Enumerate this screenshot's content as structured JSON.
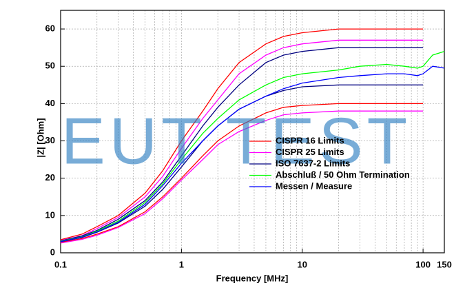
{
  "chart_data": {
    "type": "line",
    "watermark": "EUT TEST",
    "xlabel": "Frequency [MHz]",
    "ylabel": "|Z| [Ohm]",
    "xscale": "log",
    "xlim": [
      0.1,
      150
    ],
    "xticks": [
      0.1,
      1,
      10,
      100,
      150
    ],
    "ylim": [
      0,
      65
    ],
    "yticks": [
      0,
      10,
      20,
      30,
      40,
      50,
      60
    ],
    "grid": true,
    "series": [
      {
        "name": "CISPR 16 Limits",
        "color": "#ff0000",
        "x": [
          0.1,
          0.15,
          0.2,
          0.3,
          0.5,
          0.7,
          1,
          1.5,
          2,
          3,
          5,
          7,
          10,
          20,
          30,
          50,
          100
        ],
        "values": [
          3.5,
          5,
          7,
          10,
          16,
          22,
          30,
          38,
          44,
          51,
          56,
          58,
          59,
          60,
          60,
          60,
          60
        ],
        "lower": [
          2.8,
          3.8,
          5,
          7,
          11,
          15,
          20,
          26,
          30,
          34,
          37.5,
          39,
          39.5,
          40,
          40,
          40,
          40
        ]
      },
      {
        "name": "CISPR 25 Limits",
        "color": "#ff00ff",
        "x": [
          0.1,
          0.15,
          0.2,
          0.3,
          0.5,
          0.7,
          1,
          1.5,
          2,
          3,
          5,
          7,
          10,
          20,
          30,
          50,
          100
        ],
        "values": [
          3.3,
          4.6,
          6.5,
          9.5,
          15,
          20.5,
          28,
          36,
          41,
          48,
          53,
          55,
          56,
          57,
          57,
          57,
          57
        ],
        "lower": [
          2.6,
          3.6,
          4.7,
          6.8,
          10.5,
          14.5,
          19.5,
          25,
          29,
          32.5,
          35.5,
          37,
          37.5,
          38,
          38,
          38,
          38
        ]
      },
      {
        "name": "ISO 7637-2 Limits",
        "color": "#000080",
        "x": [
          0.1,
          0.15,
          0.2,
          0.3,
          0.5,
          0.7,
          1,
          1.5,
          2,
          3,
          5,
          7,
          10,
          20,
          30,
          50,
          100
        ],
        "values": [
          3.2,
          4.5,
          6,
          9,
          14,
          19,
          26,
          34,
          39,
          45,
          51,
          53,
          54,
          55,
          55,
          55,
          55
        ],
        "lower": [
          3,
          4.1,
          5.5,
          8,
          12.5,
          17,
          23,
          30,
          34,
          38.5,
          42,
          43.5,
          44.5,
          45,
          45,
          45,
          45
        ]
      },
      {
        "name": "Abschluß / 50 Ohm Termination",
        "color": "#00ff00",
        "x": [
          0.1,
          0.15,
          0.2,
          0.3,
          0.5,
          0.7,
          1,
          1.5,
          2,
          3,
          5,
          7,
          10,
          20,
          30,
          50,
          70,
          90,
          100,
          120,
          150
        ],
        "values": [
          3.1,
          4.3,
          5.8,
          8.5,
          13.5,
          18.5,
          25,
          32,
          36,
          41,
          45,
          47,
          48,
          49,
          50,
          50.5,
          50,
          49.5,
          50,
          53,
          54
        ]
      },
      {
        "name": "Messen / Measure",
        "color": "#0000ff",
        "x": [
          0.1,
          0.15,
          0.2,
          0.3,
          0.5,
          0.7,
          1,
          1.5,
          2,
          3,
          5,
          7,
          10,
          20,
          30,
          50,
          70,
          90,
          100,
          120,
          150
        ],
        "values": [
          3,
          4.2,
          5.6,
          8.2,
          13,
          18,
          24,
          30,
          34,
          38.5,
          42,
          44,
          45.5,
          47,
          47.5,
          48,
          48,
          47.5,
          48,
          50,
          49.5
        ]
      }
    ]
  }
}
